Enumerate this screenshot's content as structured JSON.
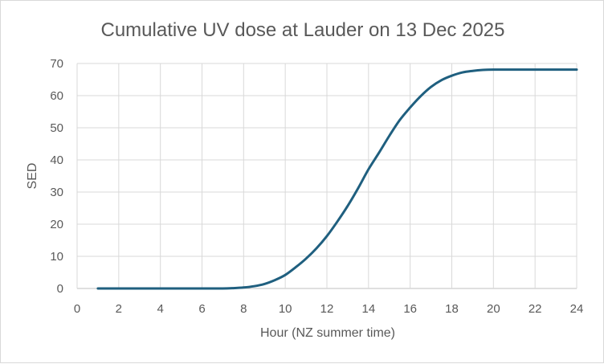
{
  "chart_data": {
    "type": "line",
    "title": "Cumulative UV dose at Lauder on 13 Dec 2025",
    "xlabel": "Hour (NZ summer time)",
    "ylabel": "SED",
    "xlim": [
      0,
      24
    ],
    "ylim": [
      0,
      70
    ],
    "xticks": [
      "0",
      "2",
      "4",
      "6",
      "8",
      "10",
      "12",
      "14",
      "16",
      "18",
      "20",
      "22",
      "24"
    ],
    "yticks": [
      "0",
      "10",
      "20",
      "30",
      "40",
      "50",
      "60",
      "70"
    ],
    "grid": true,
    "legend": "none",
    "series": [
      {
        "color": "#1f5f7f",
        "x": [
          1,
          2,
          3,
          4,
          5,
          6,
          7,
          7.5,
          8,
          8.5,
          9,
          9.5,
          10,
          10.5,
          11,
          11.5,
          12,
          12.5,
          13,
          13.5,
          14,
          14.5,
          15,
          15.5,
          16,
          16.5,
          17,
          17.5,
          18,
          18.5,
          19,
          19.5,
          20,
          21,
          22,
          23,
          24
        ],
        "y": [
          0,
          0,
          0,
          0,
          0,
          0,
          0,
          0.1,
          0.3,
          0.7,
          1.4,
          2.6,
          4.2,
          6.6,
          9.3,
          12.5,
          16.3,
          20.8,
          25.7,
          31.2,
          37.1,
          42.2,
          47.5,
          52.4,
          56.3,
          59.8,
          62.7,
          64.8,
          66.2,
          67.2,
          67.7,
          68.0,
          68.1,
          68.1,
          68.1,
          68.1,
          68.1
        ]
      }
    ]
  }
}
